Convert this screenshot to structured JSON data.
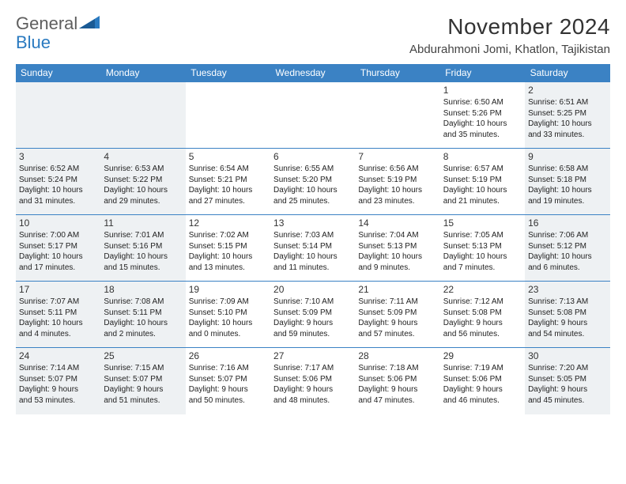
{
  "logo": {
    "word1": "General",
    "word2": "Blue"
  },
  "title": "November 2024",
  "location": "Abdurahmoni Jomi, Khatlon, Tajikistan",
  "colors": {
    "header_bg": "#3b82c4",
    "header_text": "#ffffff",
    "shade_bg": "#eef1f3",
    "row_border": "#3b82c4",
    "logo_gray": "#5e5e5e",
    "logo_blue": "#2a7ac0",
    "text": "#222222",
    "background": "#ffffff"
  },
  "typography": {
    "title_fontsize": 28,
    "location_fontsize": 15,
    "dayheader_fontsize": 12,
    "daynum_fontsize": 12,
    "body_fontsize": 10
  },
  "dayHeaders": [
    "Sunday",
    "Monday",
    "Tuesday",
    "Wednesday",
    "Thursday",
    "Friday",
    "Saturday"
  ],
  "weeks": [
    [
      null,
      null,
      null,
      null,
      null,
      {
        "n": "1",
        "sunrise": "6:50 AM",
        "sunset": "5:26 PM",
        "dl1": "10 hours",
        "dl2": "and 35 minutes."
      },
      {
        "n": "2",
        "sunrise": "6:51 AM",
        "sunset": "5:25 PM",
        "dl1": "10 hours",
        "dl2": "and 33 minutes."
      }
    ],
    [
      {
        "n": "3",
        "sunrise": "6:52 AM",
        "sunset": "5:24 PM",
        "dl1": "10 hours",
        "dl2": "and 31 minutes."
      },
      {
        "n": "4",
        "sunrise": "6:53 AM",
        "sunset": "5:22 PM",
        "dl1": "10 hours",
        "dl2": "and 29 minutes."
      },
      {
        "n": "5",
        "sunrise": "6:54 AM",
        "sunset": "5:21 PM",
        "dl1": "10 hours",
        "dl2": "and 27 minutes."
      },
      {
        "n": "6",
        "sunrise": "6:55 AM",
        "sunset": "5:20 PM",
        "dl1": "10 hours",
        "dl2": "and 25 minutes."
      },
      {
        "n": "7",
        "sunrise": "6:56 AM",
        "sunset": "5:19 PM",
        "dl1": "10 hours",
        "dl2": "and 23 minutes."
      },
      {
        "n": "8",
        "sunrise": "6:57 AM",
        "sunset": "5:19 PM",
        "dl1": "10 hours",
        "dl2": "and 21 minutes."
      },
      {
        "n": "9",
        "sunrise": "6:58 AM",
        "sunset": "5:18 PM",
        "dl1": "10 hours",
        "dl2": "and 19 minutes."
      }
    ],
    [
      {
        "n": "10",
        "sunrise": "7:00 AM",
        "sunset": "5:17 PM",
        "dl1": "10 hours",
        "dl2": "and 17 minutes."
      },
      {
        "n": "11",
        "sunrise": "7:01 AM",
        "sunset": "5:16 PM",
        "dl1": "10 hours",
        "dl2": "and 15 minutes."
      },
      {
        "n": "12",
        "sunrise": "7:02 AM",
        "sunset": "5:15 PM",
        "dl1": "10 hours",
        "dl2": "and 13 minutes."
      },
      {
        "n": "13",
        "sunrise": "7:03 AM",
        "sunset": "5:14 PM",
        "dl1": "10 hours",
        "dl2": "and 11 minutes."
      },
      {
        "n": "14",
        "sunrise": "7:04 AM",
        "sunset": "5:13 PM",
        "dl1": "10 hours",
        "dl2": "and 9 minutes."
      },
      {
        "n": "15",
        "sunrise": "7:05 AM",
        "sunset": "5:13 PM",
        "dl1": "10 hours",
        "dl2": "and 7 minutes."
      },
      {
        "n": "16",
        "sunrise": "7:06 AM",
        "sunset": "5:12 PM",
        "dl1": "10 hours",
        "dl2": "and 6 minutes."
      }
    ],
    [
      {
        "n": "17",
        "sunrise": "7:07 AM",
        "sunset": "5:11 PM",
        "dl1": "10 hours",
        "dl2": "and 4 minutes."
      },
      {
        "n": "18",
        "sunrise": "7:08 AM",
        "sunset": "5:11 PM",
        "dl1": "10 hours",
        "dl2": "and 2 minutes."
      },
      {
        "n": "19",
        "sunrise": "7:09 AM",
        "sunset": "5:10 PM",
        "dl1": "10 hours",
        "dl2": "and 0 minutes."
      },
      {
        "n": "20",
        "sunrise": "7:10 AM",
        "sunset": "5:09 PM",
        "dl1": "9 hours",
        "dl2": "and 59 minutes."
      },
      {
        "n": "21",
        "sunrise": "7:11 AM",
        "sunset": "5:09 PM",
        "dl1": "9 hours",
        "dl2": "and 57 minutes."
      },
      {
        "n": "22",
        "sunrise": "7:12 AM",
        "sunset": "5:08 PM",
        "dl1": "9 hours",
        "dl2": "and 56 minutes."
      },
      {
        "n": "23",
        "sunrise": "7:13 AM",
        "sunset": "5:08 PM",
        "dl1": "9 hours",
        "dl2": "and 54 minutes."
      }
    ],
    [
      {
        "n": "24",
        "sunrise": "7:14 AM",
        "sunset": "5:07 PM",
        "dl1": "9 hours",
        "dl2": "and 53 minutes."
      },
      {
        "n": "25",
        "sunrise": "7:15 AM",
        "sunset": "5:07 PM",
        "dl1": "9 hours",
        "dl2": "and 51 minutes."
      },
      {
        "n": "26",
        "sunrise": "7:16 AM",
        "sunset": "5:07 PM",
        "dl1": "9 hours",
        "dl2": "and 50 minutes."
      },
      {
        "n": "27",
        "sunrise": "7:17 AM",
        "sunset": "5:06 PM",
        "dl1": "9 hours",
        "dl2": "and 48 minutes."
      },
      {
        "n": "28",
        "sunrise": "7:18 AM",
        "sunset": "5:06 PM",
        "dl1": "9 hours",
        "dl2": "and 47 minutes."
      },
      {
        "n": "29",
        "sunrise": "7:19 AM",
        "sunset": "5:06 PM",
        "dl1": "9 hours",
        "dl2": "and 46 minutes."
      },
      {
        "n": "30",
        "sunrise": "7:20 AM",
        "sunset": "5:05 PM",
        "dl1": "9 hours",
        "dl2": "and 45 minutes."
      }
    ]
  ],
  "labels": {
    "sunrise_prefix": "Sunrise: ",
    "sunset_prefix": "Sunset: ",
    "daylight_prefix": "Daylight: "
  }
}
